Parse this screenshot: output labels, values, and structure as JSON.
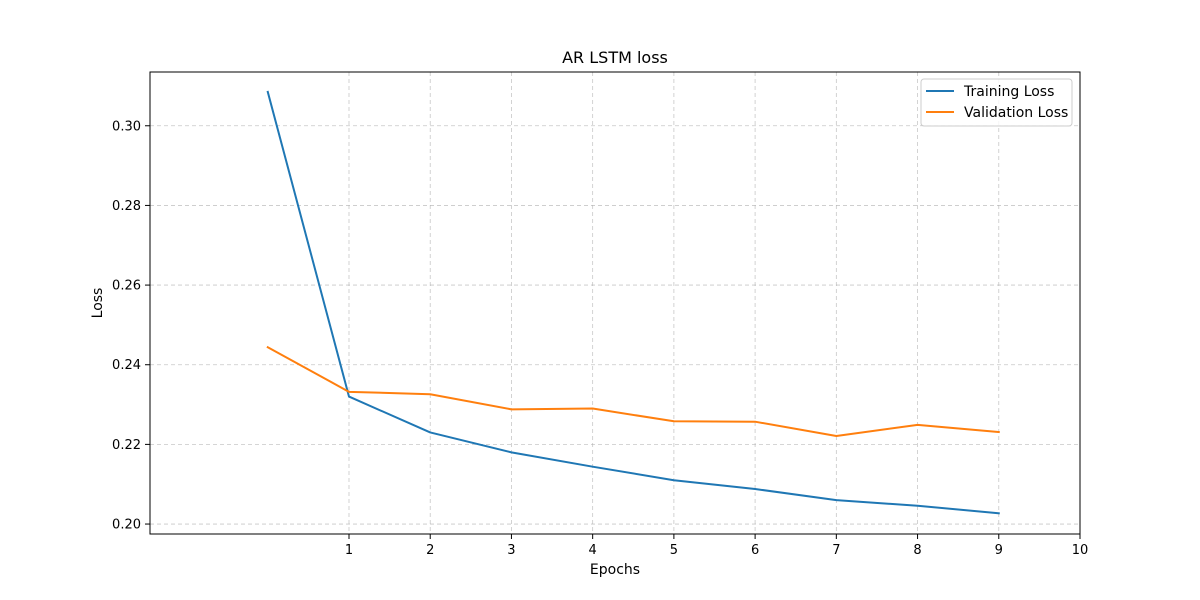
{
  "chart_data": {
    "type": "line",
    "title": "AR LSTM loss",
    "xlabel": "Epochs",
    "ylabel": "Loss",
    "xlim": [
      -1.45,
      10
    ],
    "ylim": [
      0.1975,
      0.3135
    ],
    "x_ticks": [
      1,
      2,
      3,
      4,
      5,
      6,
      7,
      8,
      9,
      10
    ],
    "y_ticks": [
      0.2,
      0.22,
      0.24,
      0.26,
      0.28,
      0.3
    ],
    "y_tick_labels": [
      "0.20",
      "0.22",
      "0.24",
      "0.26",
      "0.28",
      "0.30"
    ],
    "grid": true,
    "grid_style": "dashed",
    "legend_position": "top-right",
    "x": [
      0,
      1,
      2,
      3,
      4,
      5,
      6,
      7,
      8,
      9
    ],
    "series": [
      {
        "name": "Training Loss",
        "color": "#1f77b4",
        "values": [
          0.3085,
          0.232,
          0.223,
          0.218,
          0.2144,
          0.211,
          0.2088,
          0.206,
          0.2046,
          0.2027
        ]
      },
      {
        "name": "Validation Loss",
        "color": "#ff7f0e",
        "values": [
          0.2444,
          0.2332,
          0.2326,
          0.2288,
          0.229,
          0.2258,
          0.2257,
          0.2221,
          0.2249,
          0.2231
        ]
      }
    ]
  }
}
